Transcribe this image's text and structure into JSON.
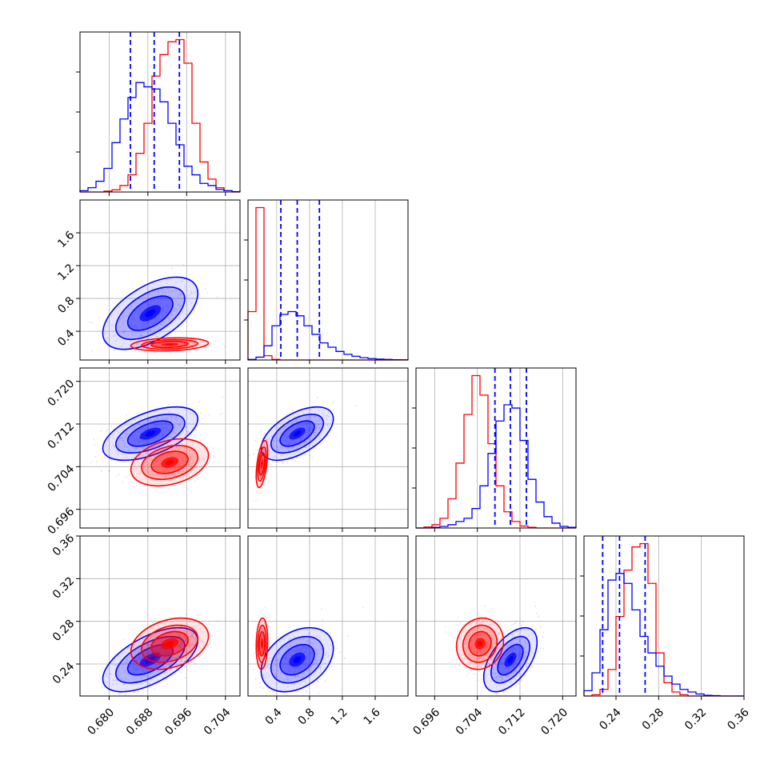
{
  "chart_data": {
    "type": "corner",
    "grid": true,
    "series": [
      {
        "name": "",
        "color": "#0000ff"
      },
      {
        "name": "",
        "color": "#ff0000"
      }
    ],
    "parameters": [
      {
        "range": [
          0.674,
          0.707
        ],
        "ticks": [
          0.68,
          0.688,
          0.696,
          0.704
        ],
        "tick_labels": [
          "0.680",
          "0.688",
          "0.696",
          "0.704"
        ],
        "quantiles_blue": [
          0.6844,
          0.6893,
          0.6945
        ],
        "hist_edges": [
          0.674,
          0.67565,
          0.6773,
          0.67895,
          0.6806,
          0.68225,
          0.6839,
          0.68555,
          0.6872,
          0.68885,
          0.6905,
          0.69215,
          0.6938,
          0.69545,
          0.6971,
          0.69875,
          0.7004,
          0.70205,
          0.7037,
          0.70535,
          0.707
        ],
        "hist_blue": [
          0.3,
          1.0,
          2.5,
          5.5,
          11.5,
          17.0,
          22.0,
          25.5,
          24.5,
          24.0,
          21.0,
          16.0,
          11.0,
          6.0,
          4.0,
          2.0,
          1.5,
          0.6,
          0.3,
          0.1
        ],
        "hist_red": [
          0.0,
          0.0,
          0.0,
          0.2,
          0.5,
          1.5,
          4.0,
          9.0,
          16.0,
          27.0,
          32.0,
          35.0,
          35.5,
          30.0,
          16.0,
          7.0,
          3.0,
          1.0,
          0.3,
          0.0
        ]
      },
      {
        "range": [
          0.05,
          2.0
        ],
        "ticks": [
          0.4,
          0.8,
          1.2,
          1.6
        ],
        "tick_labels": [
          "0.4",
          "0.8",
          "1.2",
          "1.6"
        ],
        "quantiles_blue": [
          0.45,
          0.65,
          0.92
        ],
        "hist_edges": [
          0.05,
          0.1475,
          0.245,
          0.3425,
          0.44,
          0.5375,
          0.635,
          0.7325,
          0.83,
          0.9275,
          1.025,
          1.1225,
          1.22,
          1.3175,
          1.415,
          1.5125,
          1.61,
          1.7075,
          1.805,
          1.9025,
          2.0
        ],
        "hist_blue": [
          0.2,
          1.0,
          5.0,
          12.0,
          16.0,
          17.0,
          15.5,
          12.0,
          9.0,
          6.0,
          4.5,
          3.0,
          2.0,
          1.3,
          0.8,
          0.5,
          0.3,
          0.2,
          0.1,
          0.05
        ],
        "hist_red": [
          17.0,
          53.5,
          1.5,
          0.2,
          0.0,
          0.0,
          0.0,
          0.0,
          0.0,
          0.0,
          0.0,
          0.0,
          0.0,
          0.0,
          0.0,
          0.0,
          0.0,
          0.0,
          0.0,
          0.0
        ]
      },
      {
        "range": [
          0.6925,
          0.7225
        ],
        "ticks": [
          0.696,
          0.704,
          0.712,
          0.72
        ],
        "tick_labels": [
          "0.696",
          "0.704",
          "0.712",
          "0.720"
        ],
        "quantiles_blue": [
          0.7073,
          0.7102,
          0.7132
        ],
        "hist_edges": [
          0.6925,
          0.694,
          0.6955,
          0.697,
          0.6985,
          0.7,
          0.7015,
          0.703,
          0.7045,
          0.706,
          0.7075,
          0.709,
          0.7105,
          0.712,
          0.7135,
          0.715,
          0.7165,
          0.718,
          0.7195,
          0.721,
          0.7225
        ],
        "hist_blue": [
          0.0,
          0.0,
          0.2,
          0.5,
          1.0,
          2.0,
          3.0,
          6.0,
          13.0,
          23.0,
          33.0,
          38.0,
          37.0,
          27.0,
          15.0,
          8.0,
          3.5,
          1.5,
          0.5,
          0.2
        ],
        "hist_red": [
          0.0,
          0.3,
          1.0,
          3.0,
          9.0,
          20.0,
          35.0,
          47.0,
          41.0,
          26.0,
          13.0,
          5.0,
          2.0,
          0.6,
          0.2,
          0.0,
          0.0,
          0.0,
          0.0,
          0.0
        ]
      },
      {
        "range": [
          0.21,
          0.36
        ],
        "ticks": [
          0.24,
          0.28,
          0.32,
          0.36
        ],
        "tick_labels": [
          "0.24",
          "0.28",
          "0.32",
          "0.36"
        ],
        "quantiles_blue": [
          0.2275,
          0.2433,
          0.2673
        ],
        "hist_edges": [
          0.21,
          0.2175,
          0.225,
          0.2325,
          0.24,
          0.2475,
          0.255,
          0.2625,
          0.27,
          0.2775,
          0.285,
          0.2925,
          0.3,
          0.3075,
          0.315,
          0.3225,
          0.33,
          0.3375,
          0.345,
          0.3525,
          0.36
        ],
        "hist_blue": [
          0.8,
          3.5,
          10.0,
          17.5,
          18.5,
          17.0,
          13.0,
          9.0,
          6.5,
          4.5,
          3.0,
          1.8,
          1.0,
          0.6,
          0.3,
          0.1,
          0.05,
          0.0,
          0.0,
          0.0
        ],
        "hist_red": [
          0.0,
          0.2,
          1.0,
          4.0,
          12.0,
          19.0,
          22.5,
          23.0,
          17.0,
          6.5,
          2.0,
          0.6,
          0.2,
          0.0,
          0.0,
          0.0,
          0.0,
          0.0,
          0.0,
          0.0
        ]
      }
    ],
    "pairs": [
      {
        "row": 1,
        "col": 0,
        "blue": {
          "mean": [
            0.6885,
            0.62
          ],
          "sd": [
            0.0049,
            0.22
          ],
          "rho": 0.55
        },
        "red": {
          "mean": [
            0.6925,
            0.24
          ],
          "sd": [
            0.004,
            0.04
          ],
          "rho": 0.2
        }
      },
      {
        "row": 2,
        "col": 0,
        "blue": {
          "mean": [
            0.6885,
            0.7102
          ],
          "sd": [
            0.0049,
            0.0025
          ],
          "rho": 0.55
        },
        "red": {
          "mean": [
            0.6925,
            0.7048
          ],
          "sd": [
            0.004,
            0.0022
          ],
          "rho": 0.3
        }
      },
      {
        "row": 2,
        "col": 1,
        "blue": {
          "mean": [
            0.65,
            0.7102
          ],
          "sd": [
            0.22,
            0.0025
          ],
          "rho": 0.55
        },
        "red": {
          "mean": [
            0.22,
            0.7045
          ],
          "sd": [
            0.035,
            0.0022
          ],
          "rho": 0.5
        }
      },
      {
        "row": 3,
        "col": 0,
        "blue": {
          "mean": [
            0.6885,
            0.244
          ],
          "sd": [
            0.0049,
            0.015
          ],
          "rho": 0.6
        },
        "red": {
          "mean": [
            0.6925,
            0.259
          ],
          "sd": [
            0.004,
            0.012
          ],
          "rho": 0.3
        }
      },
      {
        "row": 3,
        "col": 1,
        "blue": {
          "mean": [
            0.65,
            0.244
          ],
          "sd": [
            0.22,
            0.015
          ],
          "rho": 0.35
        },
        "red": {
          "mean": [
            0.22,
            0.259
          ],
          "sd": [
            0.035,
            0.012
          ],
          "rho": 0.1
        }
      },
      {
        "row": 3,
        "col": 2,
        "blue": {
          "mean": [
            0.7102,
            0.244
          ],
          "sd": [
            0.0025,
            0.015
          ],
          "rho": 0.55
        },
        "red": {
          "mean": [
            0.7045,
            0.259
          ],
          "sd": [
            0.0022,
            0.012
          ],
          "rho": 0.1
        }
      }
    ]
  }
}
